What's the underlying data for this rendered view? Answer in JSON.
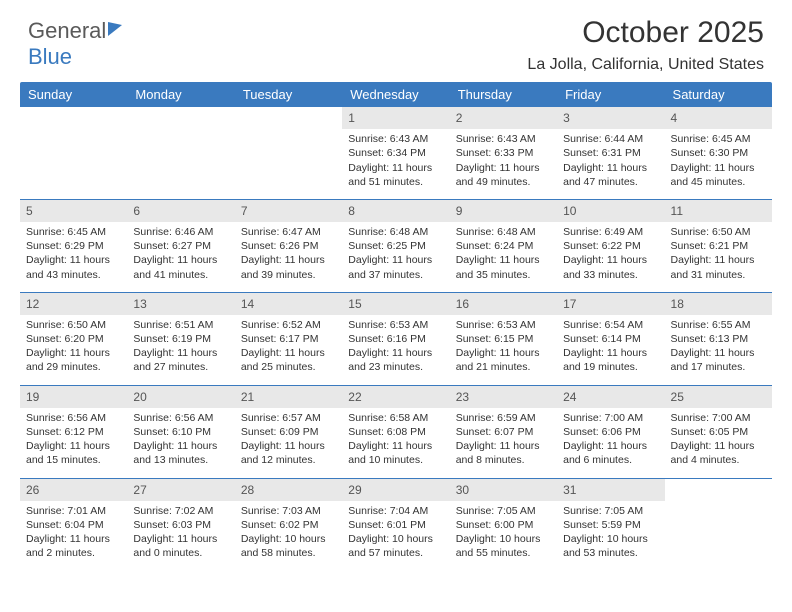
{
  "brand": {
    "part1": "General",
    "part2": "Blue"
  },
  "header": {
    "month_year": "October 2025",
    "location": "La Jolla, California, United States"
  },
  "colors": {
    "header_bg": "#3a7abf",
    "header_text": "#ffffff",
    "daynum_bg": "#e8e8e8",
    "divider": "#3a7abf",
    "text": "#333333"
  },
  "day_labels": [
    "Sunday",
    "Monday",
    "Tuesday",
    "Wednesday",
    "Thursday",
    "Friday",
    "Saturday"
  ],
  "weeks": [
    [
      {
        "day": "",
        "sunrise": "",
        "sunset": "",
        "daylight": ""
      },
      {
        "day": "",
        "sunrise": "",
        "sunset": "",
        "daylight": ""
      },
      {
        "day": "",
        "sunrise": "",
        "sunset": "",
        "daylight": ""
      },
      {
        "day": "1",
        "sunrise": "Sunrise: 6:43 AM",
        "sunset": "Sunset: 6:34 PM",
        "daylight": "Daylight: 11 hours and 51 minutes."
      },
      {
        "day": "2",
        "sunrise": "Sunrise: 6:43 AM",
        "sunset": "Sunset: 6:33 PM",
        "daylight": "Daylight: 11 hours and 49 minutes."
      },
      {
        "day": "3",
        "sunrise": "Sunrise: 6:44 AM",
        "sunset": "Sunset: 6:31 PM",
        "daylight": "Daylight: 11 hours and 47 minutes."
      },
      {
        "day": "4",
        "sunrise": "Sunrise: 6:45 AM",
        "sunset": "Sunset: 6:30 PM",
        "daylight": "Daylight: 11 hours and 45 minutes."
      }
    ],
    [
      {
        "day": "5",
        "sunrise": "Sunrise: 6:45 AM",
        "sunset": "Sunset: 6:29 PM",
        "daylight": "Daylight: 11 hours and 43 minutes."
      },
      {
        "day": "6",
        "sunrise": "Sunrise: 6:46 AM",
        "sunset": "Sunset: 6:27 PM",
        "daylight": "Daylight: 11 hours and 41 minutes."
      },
      {
        "day": "7",
        "sunrise": "Sunrise: 6:47 AM",
        "sunset": "Sunset: 6:26 PM",
        "daylight": "Daylight: 11 hours and 39 minutes."
      },
      {
        "day": "8",
        "sunrise": "Sunrise: 6:48 AM",
        "sunset": "Sunset: 6:25 PM",
        "daylight": "Daylight: 11 hours and 37 minutes."
      },
      {
        "day": "9",
        "sunrise": "Sunrise: 6:48 AM",
        "sunset": "Sunset: 6:24 PM",
        "daylight": "Daylight: 11 hours and 35 minutes."
      },
      {
        "day": "10",
        "sunrise": "Sunrise: 6:49 AM",
        "sunset": "Sunset: 6:22 PM",
        "daylight": "Daylight: 11 hours and 33 minutes."
      },
      {
        "day": "11",
        "sunrise": "Sunrise: 6:50 AM",
        "sunset": "Sunset: 6:21 PM",
        "daylight": "Daylight: 11 hours and 31 minutes."
      }
    ],
    [
      {
        "day": "12",
        "sunrise": "Sunrise: 6:50 AM",
        "sunset": "Sunset: 6:20 PM",
        "daylight": "Daylight: 11 hours and 29 minutes."
      },
      {
        "day": "13",
        "sunrise": "Sunrise: 6:51 AM",
        "sunset": "Sunset: 6:19 PM",
        "daylight": "Daylight: 11 hours and 27 minutes."
      },
      {
        "day": "14",
        "sunrise": "Sunrise: 6:52 AM",
        "sunset": "Sunset: 6:17 PM",
        "daylight": "Daylight: 11 hours and 25 minutes."
      },
      {
        "day": "15",
        "sunrise": "Sunrise: 6:53 AM",
        "sunset": "Sunset: 6:16 PM",
        "daylight": "Daylight: 11 hours and 23 minutes."
      },
      {
        "day": "16",
        "sunrise": "Sunrise: 6:53 AM",
        "sunset": "Sunset: 6:15 PM",
        "daylight": "Daylight: 11 hours and 21 minutes."
      },
      {
        "day": "17",
        "sunrise": "Sunrise: 6:54 AM",
        "sunset": "Sunset: 6:14 PM",
        "daylight": "Daylight: 11 hours and 19 minutes."
      },
      {
        "day": "18",
        "sunrise": "Sunrise: 6:55 AM",
        "sunset": "Sunset: 6:13 PM",
        "daylight": "Daylight: 11 hours and 17 minutes."
      }
    ],
    [
      {
        "day": "19",
        "sunrise": "Sunrise: 6:56 AM",
        "sunset": "Sunset: 6:12 PM",
        "daylight": "Daylight: 11 hours and 15 minutes."
      },
      {
        "day": "20",
        "sunrise": "Sunrise: 6:56 AM",
        "sunset": "Sunset: 6:10 PM",
        "daylight": "Daylight: 11 hours and 13 minutes."
      },
      {
        "day": "21",
        "sunrise": "Sunrise: 6:57 AM",
        "sunset": "Sunset: 6:09 PM",
        "daylight": "Daylight: 11 hours and 12 minutes."
      },
      {
        "day": "22",
        "sunrise": "Sunrise: 6:58 AM",
        "sunset": "Sunset: 6:08 PM",
        "daylight": "Daylight: 11 hours and 10 minutes."
      },
      {
        "day": "23",
        "sunrise": "Sunrise: 6:59 AM",
        "sunset": "Sunset: 6:07 PM",
        "daylight": "Daylight: 11 hours and 8 minutes."
      },
      {
        "day": "24",
        "sunrise": "Sunrise: 7:00 AM",
        "sunset": "Sunset: 6:06 PM",
        "daylight": "Daylight: 11 hours and 6 minutes."
      },
      {
        "day": "25",
        "sunrise": "Sunrise: 7:00 AM",
        "sunset": "Sunset: 6:05 PM",
        "daylight": "Daylight: 11 hours and 4 minutes."
      }
    ],
    [
      {
        "day": "26",
        "sunrise": "Sunrise: 7:01 AM",
        "sunset": "Sunset: 6:04 PM",
        "daylight": "Daylight: 11 hours and 2 minutes."
      },
      {
        "day": "27",
        "sunrise": "Sunrise: 7:02 AM",
        "sunset": "Sunset: 6:03 PM",
        "daylight": "Daylight: 11 hours and 0 minutes."
      },
      {
        "day": "28",
        "sunrise": "Sunrise: 7:03 AM",
        "sunset": "Sunset: 6:02 PM",
        "daylight": "Daylight: 10 hours and 58 minutes."
      },
      {
        "day": "29",
        "sunrise": "Sunrise: 7:04 AM",
        "sunset": "Sunset: 6:01 PM",
        "daylight": "Daylight: 10 hours and 57 minutes."
      },
      {
        "day": "30",
        "sunrise": "Sunrise: 7:05 AM",
        "sunset": "Sunset: 6:00 PM",
        "daylight": "Daylight: 10 hours and 55 minutes."
      },
      {
        "day": "31",
        "sunrise": "Sunrise: 7:05 AM",
        "sunset": "Sunset: 5:59 PM",
        "daylight": "Daylight: 10 hours and 53 minutes."
      },
      {
        "day": "",
        "sunrise": "",
        "sunset": "",
        "daylight": ""
      }
    ]
  ]
}
